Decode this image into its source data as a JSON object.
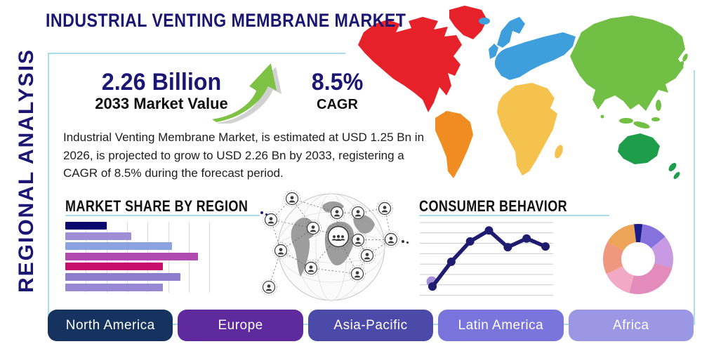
{
  "page": {
    "title": "INDUSTRIAL VENTING MEMBRANE MARKET",
    "side_label": "REGIONAL ANALYSIS"
  },
  "stats": {
    "market_value": "2.26 Billion",
    "market_value_label": "2033 Market Value",
    "cagr_value": "8.5%",
    "cagr_label": "CAGR",
    "growth_arrow_color": "#7dc242"
  },
  "description": "Industrial Venting Membrane Market, is estimated at USD 1.25 Bn in 2026, is projected to grow to USD 2.26 Bn by 2033, registering a CAGR of 8.5% during the forecast period.",
  "sections": {
    "market_share_title": "MARKET SHARE BY REGION",
    "consumer_behavior_title": "CONSUMER BEHAVIOR"
  },
  "chart_data": [
    {
      "type": "bar",
      "title": "MARKET SHARE BY REGION",
      "orientation": "horizontal",
      "note": "seven unlabeled bars, relative share of axis max",
      "values_pct": [
        29,
        46,
        74,
        92,
        68,
        80,
        68
      ],
      "bar_colors": [
        "#0a0a6e",
        "#9d8ed6",
        "#8ba3e0",
        "#b04ab0",
        "#c70d6e",
        "#8b7dcc",
        "#9688d2"
      ],
      "xlim": [
        0,
        100
      ],
      "grid": true,
      "gridline_count": 7
    },
    {
      "type": "line",
      "title": "CONSUMER BEHAVIOR",
      "x": [
        1,
        2,
        3,
        4,
        5,
        6,
        7
      ],
      "y_pct": [
        12,
        46,
        74,
        89,
        66,
        78,
        67
      ],
      "ylim": [
        0,
        100
      ],
      "line_color": "#1e1b70",
      "marker_color": "#1e1b70",
      "start_marker_color": "#a58fd8",
      "gridline_count": 8,
      "grid_color": "#c9ccd6"
    },
    {
      "type": "donut",
      "title": "regional share donut",
      "start_angle_deg": -7,
      "slices": [
        {
          "pct": 4,
          "color": "#1b1b8a"
        },
        {
          "pct": 12,
          "color": "#8672dc"
        },
        {
          "pct": 15,
          "color": "#c99ae4"
        },
        {
          "pct": 25,
          "color": "#e38cbb"
        },
        {
          "pct": 14,
          "color": "#f2a9c4"
        },
        {
          "pct": 15,
          "color": "#f0977f"
        },
        {
          "pct": 15,
          "color": "#eca558"
        }
      ]
    }
  ],
  "world_map": {
    "regions": [
      {
        "name": "north-america",
        "label": "North America",
        "color": "#e62129"
      },
      {
        "name": "south-america",
        "label": "South America",
        "color": "#ef8d22"
      },
      {
        "name": "europe",
        "label": "Europe",
        "color": "#3f9fdc"
      },
      {
        "name": "africa",
        "label": "Africa",
        "color": "#f5c24d"
      },
      {
        "name": "asia",
        "label": "Asia",
        "color": "#71bf44"
      },
      {
        "name": "oceania",
        "label": "Oceania",
        "color": "#1e9e4b"
      }
    ]
  },
  "globe_graphic": {
    "description": "grayscale wireframe globe with connected people network nodes"
  },
  "regions_buttons": [
    {
      "label": "North America",
      "color": "#16335f"
    },
    {
      "label": "Europe",
      "color": "#5e2a9d"
    },
    {
      "label": "Asia-Pacific",
      "color": "#4c4aa8"
    },
    {
      "label": "Latin America",
      "color": "#7a75dc"
    },
    {
      "label": "Africa",
      "color": "#9b97e4"
    }
  ],
  "colors": {
    "accent_line": "#aadcec",
    "navy": "#1b1674"
  }
}
